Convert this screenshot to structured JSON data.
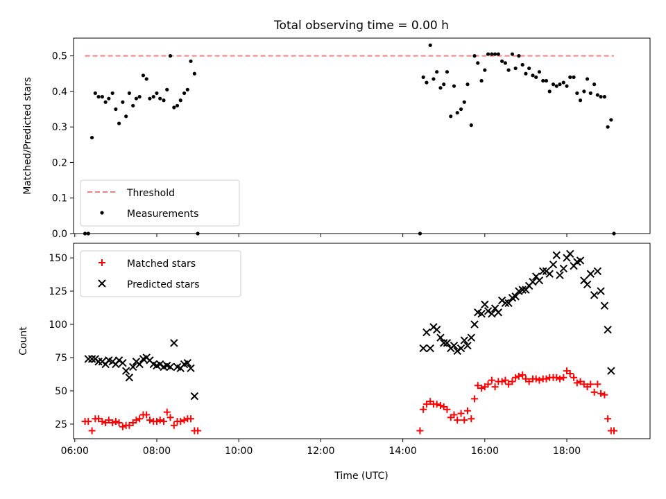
{
  "figure": {
    "title": "Total observing time = 0.00 h"
  },
  "chart_data": [
    {
      "type": "scatter",
      "panel": "top",
      "ylabel": "Matched/Predicted stars",
      "xlabel": "",
      "xlim_hours": [
        5.97,
        20.03
      ],
      "ylim": [
        0,
        0.55
      ],
      "yticks": [
        0.0,
        0.1,
        0.2,
        0.3,
        0.4,
        0.5
      ],
      "ytick_labels": [
        "0.0",
        "0.1",
        "0.2",
        "0.3",
        "0.4",
        "0.5"
      ],
      "grid": false,
      "legend_position": "lower-left",
      "colors": {
        "threshold": "#f08080",
        "measurements": "#000000"
      },
      "series": [
        {
          "name": "Threshold",
          "kind": "dashed-line",
          "x": [
            6.25,
            19.15
          ],
          "y": [
            0.5,
            0.5
          ]
        },
        {
          "name": "Measurements",
          "kind": "points",
          "x": [
            6.25,
            6.33,
            6.42,
            6.5,
            6.58,
            6.67,
            6.75,
            6.83,
            6.92,
            7.0,
            7.08,
            7.17,
            7.25,
            7.33,
            7.42,
            7.5,
            7.58,
            7.67,
            7.75,
            7.83,
            7.92,
            8.0,
            8.08,
            8.17,
            8.25,
            8.33,
            8.42,
            8.5,
            8.58,
            8.67,
            8.75,
            8.83,
            8.92,
            9.0,
            14.42,
            14.5,
            14.58,
            14.67,
            14.75,
            14.83,
            14.92,
            15.0,
            15.08,
            15.17,
            15.25,
            15.33,
            15.42,
            15.5,
            15.58,
            15.67,
            15.75,
            15.83,
            15.92,
            16.0,
            16.08,
            16.17,
            16.25,
            16.33,
            16.42,
            16.5,
            16.58,
            16.67,
            16.75,
            16.83,
            16.92,
            17.0,
            17.08,
            17.17,
            17.25,
            17.33,
            17.42,
            17.5,
            17.58,
            17.67,
            17.75,
            17.83,
            17.92,
            18.0,
            18.08,
            18.17,
            18.25,
            18.33,
            18.42,
            18.5,
            18.58,
            18.67,
            18.75,
            18.83,
            18.92,
            19.0,
            19.08,
            19.15
          ],
          "y": [
            0.0,
            0.0,
            0.27,
            0.395,
            0.385,
            0.385,
            0.37,
            0.38,
            0.395,
            0.35,
            0.31,
            0.37,
            0.33,
            0.395,
            0.36,
            0.38,
            0.385,
            0.445,
            0.435,
            0.38,
            0.385,
            0.395,
            0.38,
            0.375,
            0.405,
            0.5,
            0.355,
            0.36,
            0.375,
            0.395,
            0.405,
            0.485,
            0.45,
            0.0,
            0.0,
            0.44,
            0.425,
            0.53,
            0.435,
            0.455,
            0.41,
            0.42,
            0.455,
            0.33,
            0.415,
            0.34,
            0.35,
            0.37,
            0.42,
            0.305,
            0.5,
            0.48,
            0.43,
            0.46,
            0.505,
            0.505,
            0.505,
            0.505,
            0.485,
            0.48,
            0.46,
            0.505,
            0.465,
            0.5,
            0.475,
            0.45,
            0.465,
            0.445,
            0.44,
            0.455,
            0.43,
            0.43,
            0.4,
            0.42,
            0.415,
            0.42,
            0.425,
            0.415,
            0.44,
            0.44,
            0.395,
            0.375,
            0.4,
            0.435,
            0.395,
            0.42,
            0.39,
            0.385,
            0.385,
            0.3,
            0.32,
            0.0
          ]
        }
      ]
    },
    {
      "type": "scatter",
      "panel": "bottom",
      "ylabel": "Count",
      "xlabel": "Time (UTC)",
      "xlim_hours": [
        5.97,
        20.03
      ],
      "ylim": [
        14,
        161
      ],
      "yticks": [
        25,
        50,
        75,
        100,
        125,
        150
      ],
      "ytick_labels": [
        "25",
        "50",
        "75",
        "100",
        "125",
        "150"
      ],
      "xticks_hours": [
        6,
        8,
        10,
        12,
        14,
        16,
        18
      ],
      "xtick_labels": [
        "06:00",
        "08:00",
        "10:00",
        "12:00",
        "14:00",
        "16:00",
        "18:00"
      ],
      "grid": false,
      "legend_position": "top-left",
      "colors": {
        "matched": "#ff0000",
        "predicted": "#000000"
      },
      "series": [
        {
          "name": "Matched stars",
          "marker": "+",
          "x": [
            6.25,
            6.33,
            6.42,
            6.5,
            6.58,
            6.67,
            6.75,
            6.83,
            6.92,
            7.0,
            7.08,
            7.17,
            7.25,
            7.33,
            7.42,
            7.5,
            7.58,
            7.67,
            7.75,
            7.83,
            7.92,
            8.0,
            8.08,
            8.17,
            8.25,
            8.33,
            8.42,
            8.5,
            8.58,
            8.67,
            8.75,
            8.83,
            8.92,
            9.0,
            14.42,
            14.5,
            14.58,
            14.67,
            14.75,
            14.83,
            14.92,
            15.0,
            15.08,
            15.17,
            15.25,
            15.33,
            15.42,
            15.5,
            15.58,
            15.67,
            15.75,
            15.83,
            15.92,
            16.0,
            16.08,
            16.17,
            16.25,
            16.33,
            16.42,
            16.5,
            16.58,
            16.67,
            16.75,
            16.83,
            16.92,
            17.0,
            17.08,
            17.17,
            17.25,
            17.33,
            17.42,
            17.5,
            17.58,
            17.67,
            17.75,
            17.83,
            17.92,
            18.0,
            18.08,
            18.17,
            18.25,
            18.33,
            18.42,
            18.5,
            18.58,
            18.67,
            18.75,
            18.83,
            18.92,
            19.0,
            19.08,
            19.15
          ],
          "y": [
            27,
            27,
            20,
            29,
            29,
            27,
            26,
            28,
            26,
            27,
            26,
            23,
            24,
            24,
            26,
            28,
            29,
            32,
            32,
            28,
            27,
            27,
            28,
            27,
            34,
            30,
            24,
            27,
            27,
            28,
            29,
            29,
            20,
            20,
            20,
            36,
            40,
            42,
            40,
            40,
            39,
            38,
            36,
            30,
            32,
            28,
            33,
            28,
            35,
            29,
            44,
            54,
            52,
            53,
            55,
            58,
            53,
            57,
            57,
            58,
            55,
            57,
            60,
            61,
            62,
            59,
            57,
            59,
            59,
            58,
            59,
            59,
            60,
            60,
            60,
            59,
            60,
            65,
            63,
            60,
            56,
            57,
            55,
            53,
            55,
            49,
            55,
            48,
            47,
            29,
            20,
            20
          ]
        },
        {
          "name": "Predicted stars",
          "marker": "x",
          "x": [
            6.33,
            6.42,
            6.5,
            6.58,
            6.67,
            6.75,
            6.83,
            6.92,
            7.0,
            7.08,
            7.17,
            7.25,
            7.33,
            7.42,
            7.5,
            7.58,
            7.67,
            7.75,
            7.83,
            7.92,
            8.0,
            8.08,
            8.17,
            8.25,
            8.33,
            8.42,
            8.5,
            8.58,
            8.67,
            8.75,
            8.83,
            8.92,
            14.5,
            14.58,
            14.67,
            14.75,
            14.83,
            14.92,
            15.0,
            15.08,
            15.17,
            15.25,
            15.33,
            15.42,
            15.5,
            15.58,
            15.67,
            15.75,
            15.83,
            15.92,
            16.0,
            16.08,
            16.17,
            16.25,
            16.33,
            16.42,
            16.5,
            16.58,
            16.67,
            16.75,
            16.83,
            16.92,
            17.0,
            17.08,
            17.17,
            17.25,
            17.33,
            17.42,
            17.5,
            17.58,
            17.67,
            17.75,
            17.83,
            17.92,
            18.0,
            18.08,
            18.17,
            18.25,
            18.33,
            18.42,
            18.5,
            18.58,
            18.67,
            18.75,
            18.83,
            18.92,
            19.0,
            19.08
          ],
          "y": [
            74,
            74,
            74,
            72,
            72,
            70,
            73,
            72,
            70,
            73,
            71,
            65,
            60,
            68,
            72,
            70,
            74,
            75,
            73,
            70,
            69,
            70,
            68,
            69,
            68,
            86,
            68,
            67,
            70,
            71,
            67,
            46,
            82,
            94,
            82,
            98,
            96,
            90,
            86,
            86,
            82,
            84,
            80,
            82,
            88,
            84,
            90,
            100,
            109,
            108,
            115,
            110,
            108,
            112,
            109,
            118,
            116,
            116,
            120,
            121,
            125,
            126,
            126,
            129,
            132,
            136,
            133,
            140,
            140,
            138,
            145,
            152,
            137,
            142,
            150,
            153,
            144,
            147,
            148,
            133,
            130,
            138,
            122,
            140,
            125,
            114,
            96,
            65
          ]
        }
      ]
    }
  ]
}
